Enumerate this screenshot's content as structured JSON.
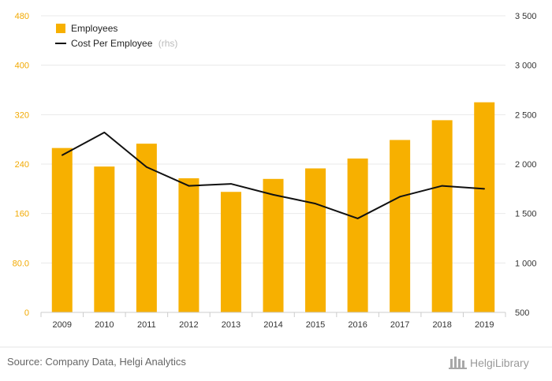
{
  "chart_data": {
    "type": "bar",
    "categories": [
      "2009",
      "2010",
      "2011",
      "2012",
      "2013",
      "2014",
      "2015",
      "2016",
      "2017",
      "2018",
      "2019"
    ],
    "series": [
      {
        "name": "Employees",
        "type": "bar",
        "axis": "left",
        "values": [
          266,
          236,
          273,
          217,
          195,
          216,
          233,
          249,
          279,
          311,
          340
        ]
      },
      {
        "name": "Cost Per Employee",
        "name_suffix": "(rhs)",
        "type": "line",
        "axis": "right",
        "values": [
          2090,
          2320,
          1970,
          1780,
          1800,
          1690,
          1600,
          1450,
          1670,
          1780,
          1750
        ]
      }
    ],
    "y_left": {
      "ylim": [
        0,
        480
      ],
      "ticks": [
        "0",
        "80.0",
        "160",
        "240",
        "320",
        "400",
        "480"
      ]
    },
    "y_right": {
      "ylim": [
        500,
        3500
      ],
      "ticks": [
        "500",
        "1 000",
        "1 500",
        "2 000",
        "2 500",
        "3 000",
        "3 500"
      ]
    },
    "grid": true,
    "legend_position": "top-left",
    "colors": {
      "bar": "#f7b000",
      "line": "#111111",
      "left_tick": "#f2a900"
    }
  },
  "footer": {
    "source": "Source: Company Data, Helgi Analytics",
    "brand": "HelgiLibrary"
  }
}
